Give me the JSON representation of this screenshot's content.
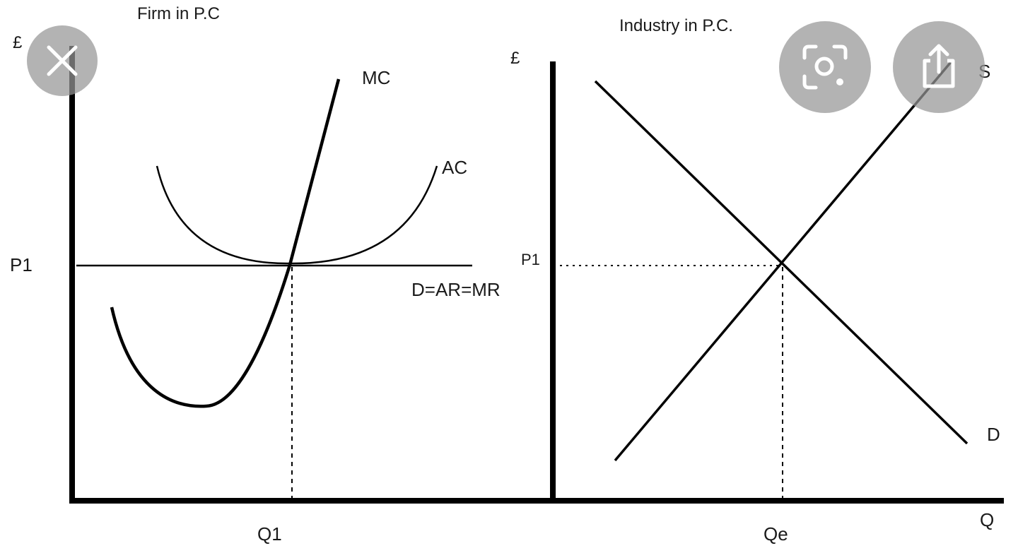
{
  "firm_panel": {
    "title": "Firm in P.C",
    "y_axis_label": "£",
    "price_label": "P1",
    "quantity_label": "Q1",
    "curves": {
      "mc": "MC",
      "ac": "AC",
      "demand": "D=AR=MR"
    }
  },
  "industry_panel": {
    "title": "Industry in P.C.",
    "y_axis_label": "£",
    "x_axis_label": "Q",
    "price_label": "P1",
    "quantity_label": "Qe",
    "curves": {
      "supply": "S",
      "demand": "D"
    }
  },
  "overlay_buttons": {
    "close": "close-icon",
    "lens": "lens-scan-icon",
    "share": "share-icon"
  }
}
